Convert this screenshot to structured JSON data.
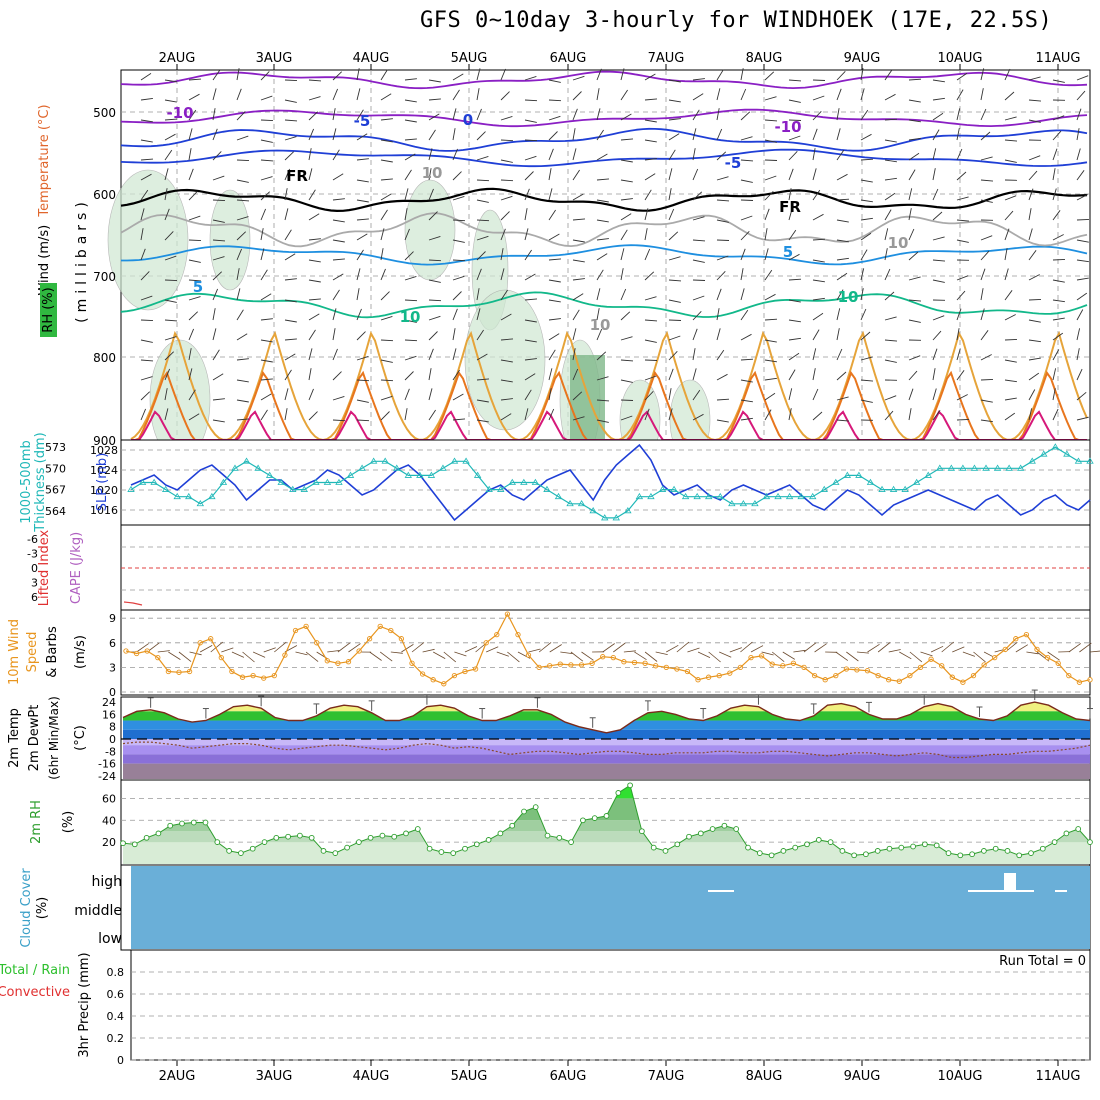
{
  "title": "GFS 0~10day 3-hourly for WINDHOEK (17E, 22.5S)",
  "dates": [
    "2AUG",
    "3AUG",
    "4AUG",
    "5AUG",
    "6AUG",
    "7AUG",
    "8AUG",
    "9AUG",
    "10AUG",
    "11AUG"
  ],
  "colors": {
    "purple": "#8a1fc4",
    "blue": "#1f3fd6",
    "lightblue": "#1e8fe0",
    "green": "#12b88a",
    "orange": "#e6a43a",
    "darkorange": "#e8761e",
    "magenta": "#d6197a",
    "cyan": "#20b8b8",
    "slp": "#1f3fd6",
    "wind10": "#e8951e",
    "cloud": "#6aafd8",
    "rh": "#2e9e2e"
  },
  "panels": {
    "upper": {
      "left_labels": [
        "Wind (m/s)",
        "Temperature (°C)",
        "RH (%)"
      ],
      "axis_title": "(millibars)",
      "ticks": [
        "500",
        "600",
        "700",
        "800",
        "900"
      ],
      "contour_labels": [
        "-10",
        "-5",
        "0",
        "FR",
        "10",
        "5",
        "10",
        "-10",
        "-5",
        "FR",
        "5",
        "10",
        "10",
        "10"
      ]
    },
    "slp": {
      "left_labels": [
        "1000-500mb",
        "Thickness (dm)",
        "SLP (mb)"
      ],
      "thick_ticks": [
        "573",
        "570",
        "567",
        "564"
      ],
      "slp_ticks": [
        "1028",
        "1024",
        "1020",
        "1016"
      ]
    },
    "cape": {
      "left_labels": [
        "Lifted Index",
        "CAPE (J/kg)"
      ],
      "ticks": [
        "-6",
        "-3",
        "0",
        "3",
        "6"
      ]
    },
    "wind10": {
      "left_labels": [
        "10m Wind",
        "Speed",
        "& Barbs",
        "(m/s)"
      ],
      "ticks": [
        "9",
        "6",
        "3",
        "0"
      ]
    },
    "temp2m": {
      "left_labels": [
        "2m Temp",
        "2m DewPt",
        "(6hr Min/Max)",
        "(°C)"
      ],
      "ticks": [
        "24",
        "16",
        "8",
        "0",
        "-8",
        "-16",
        "-24"
      ]
    },
    "rh2m": {
      "left_labels": [
        "2m RH",
        "(%)"
      ],
      "ticks": [
        "60",
        "40",
        "20"
      ]
    },
    "cloud": {
      "left_labels": [
        "Cloud Cover",
        "(%)"
      ],
      "levels": [
        "high",
        "middle",
        "low"
      ]
    },
    "precip": {
      "left_labels": [
        "Total / Rain",
        "Convective",
        "3hr Precip (mm)"
      ],
      "ticks": [
        "0.8",
        "0.6",
        "0.4",
        "0.2",
        "0"
      ],
      "run_total": "Run Total = 0"
    }
  },
  "chart_data": [
    {
      "type": "line",
      "title": "1000-500mb Thickness (dm) / SLP (mb)",
      "x": "3-hourly steps, 2AUG to 11AUG",
      "series": [
        {
          "name": "SLP (mb)",
          "values": [
            1021,
            1022,
            1023,
            1021,
            1020,
            1022,
            1024,
            1025,
            1023,
            1021,
            1018,
            1020,
            1022,
            1022,
            1020,
            1021,
            1022,
            1024,
            1023,
            1021,
            1019,
            1020,
            1022,
            1024,
            1025,
            1023,
            1020,
            1017,
            1014,
            1016,
            1018,
            1020,
            1021,
            1019,
            1018,
            1020,
            1022,
            1023,
            1024,
            1021,
            1018,
            1022,
            1025,
            1027,
            1029,
            1026,
            1021,
            1019,
            1020,
            1021,
            1019,
            1018,
            1020,
            1021,
            1020,
            1019,
            1020,
            1021,
            1019,
            1017,
            1016,
            1018,
            1020,
            1019,
            1017,
            1015,
            1017,
            1018,
            1019,
            1020,
            1019,
            1018,
            1017,
            1016,
            1018,
            1019,
            1017,
            1015,
            1016,
            1018,
            1019,
            1017,
            1016,
            1018
          ]
        },
        {
          "name": "1000-500mb Thickness (dm)",
          "values": [
            567,
            568,
            568,
            567,
            566,
            566,
            565,
            566,
            568,
            570,
            571,
            570,
            569,
            568,
            567,
            567,
            568,
            568,
            568,
            569,
            570,
            571,
            571,
            570,
            569,
            569,
            569,
            570,
            571,
            571,
            569,
            567,
            567,
            568,
            568,
            568,
            567,
            566,
            565,
            565,
            564,
            563,
            563,
            564,
            566,
            566,
            567,
            567,
            566,
            566,
            566,
            566,
            565,
            565,
            565,
            566,
            566,
            566,
            566,
            566,
            567,
            568,
            569,
            569,
            568,
            567,
            567,
            567,
            568,
            569,
            570,
            570,
            570,
            570,
            570,
            570,
            570,
            570,
            571,
            572,
            573,
            572,
            571,
            571
          ]
        }
      ],
      "ylim_thickness": [
        562,
        574
      ],
      "ylim_slp": [
        1013,
        1030
      ]
    },
    {
      "type": "line",
      "title": "10m Wind Speed (m/s)",
      "x": "3-hourly steps, 2AUG to 11AUG",
      "series": [
        {
          "name": "10m Wind Speed (m/s)",
          "values": [
            5,
            4.7,
            5,
            4.2,
            2.5,
            2.4,
            2.5,
            6,
            6.5,
            4.2,
            2.5,
            1.8,
            2,
            1.7,
            2,
            4.5,
            7.5,
            8,
            6,
            3.8,
            3.5,
            3.7,
            5,
            6.5,
            8,
            7.5,
            6.5,
            3.5,
            2.2,
            1.5,
            1,
            2,
            2.5,
            2.8,
            6,
            7,
            9.5,
            7,
            4.5,
            3,
            3.2,
            3.4,
            3.3,
            3.3,
            3.5,
            4.3,
            4.2,
            3.7,
            3.6,
            3.5,
            3.2,
            3,
            2.8,
            2.5,
            1.5,
            1.8,
            2,
            2.3,
            3,
            4.2,
            4.4,
            3.4,
            3.2,
            3.5,
            3,
            2,
            1.5,
            2,
            2.8,
            2.7,
            2.6,
            2,
            1.5,
            1.3,
            2,
            3,
            4,
            3.2,
            1.8,
            1.2,
            2,
            3.3,
            4.2,
            5.2,
            6.5,
            7,
            5.2,
            4.2,
            3.5,
            2,
            1.2,
            1.5
          ]
        }
      ],
      "ylim": [
        0,
        10
      ]
    },
    {
      "type": "area",
      "title": "2m Temp / 2m DewPt (°C)",
      "x": "3-hourly steps, 2AUG to 11AUG",
      "series": [
        {
          "name": "2m Temp (°C)",
          "values": [
            14,
            18,
            19,
            17,
            13,
            11,
            12,
            16,
            21,
            22,
            20,
            14,
            12,
            12,
            15,
            20,
            22,
            21,
            17,
            12,
            12,
            15,
            21,
            22,
            20,
            15,
            12,
            12,
            15,
            19,
            19,
            16,
            11,
            8,
            6,
            4,
            6,
            12,
            17,
            18,
            16,
            13,
            12,
            15,
            20,
            22,
            21,
            16,
            13,
            12,
            15,
            22,
            23,
            21,
            16,
            13,
            13,
            16,
            21,
            23,
            21,
            16,
            13,
            12,
            15,
            22,
            24,
            22,
            17,
            13,
            12
          ]
        },
        {
          "name": "2m DewPt (°C)",
          "values": [
            -3,
            -2,
            -2,
            -3,
            -4,
            -6,
            -5,
            -4,
            -3,
            -3,
            -4,
            -6,
            -7,
            -6,
            -5,
            -4,
            -4,
            -5,
            -6,
            -7,
            -6,
            -4,
            -3,
            -4,
            -6,
            -5,
            -6,
            -8,
            -10,
            -9,
            -8,
            -8,
            -9,
            -10,
            -9,
            -8,
            -8,
            -9,
            -10,
            -10,
            -9,
            -9,
            -9,
            -8,
            -8,
            -9,
            -9,
            -8,
            -8,
            -9,
            -10,
            -11,
            -10,
            -9,
            -9,
            -10,
            -11,
            -10,
            -9,
            -10,
            -12,
            -12,
            -11,
            -10,
            -10,
            -9,
            -8,
            -8,
            -7,
            -6,
            -4
          ]
        }
      ],
      "ylim": [
        -26,
        26
      ]
    },
    {
      "type": "area",
      "title": "2m RH (%)",
      "x": "3-hourly steps, 2AUG to 11AUG",
      "series": [
        {
          "name": "2m RH (%)",
          "values": [
            19,
            18,
            24,
            28,
            35,
            37,
            38,
            38,
            20,
            12,
            10,
            14,
            20,
            24,
            25,
            26,
            24,
            12,
            10,
            15,
            20,
            24,
            26,
            25,
            28,
            32,
            14,
            11,
            10,
            14,
            18,
            22,
            28,
            35,
            48,
            52,
            26,
            24,
            20,
            40,
            42,
            44,
            65,
            72,
            30,
            15,
            12,
            18,
            25,
            28,
            32,
            35,
            32,
            15,
            10,
            8,
            12,
            15,
            18,
            22,
            20,
            12,
            8,
            9,
            12,
            14,
            15,
            16,
            18,
            17,
            10,
            8,
            9,
            12,
            14,
            12,
            8,
            10,
            14,
            20,
            28,
            32,
            20
          ]
        }
      ],
      "ylim": [
        0,
        75
      ]
    },
    {
      "type": "bar",
      "title": "3hr Precip (mm)",
      "x": "3-hourly steps, 2AUG to 11AUG",
      "series": [
        {
          "name": "Total / Rain",
          "values": [
            0
          ]
        },
        {
          "name": "Convective",
          "values": [
            0
          ]
        }
      ],
      "ylim": [
        0,
        1
      ]
    }
  ]
}
